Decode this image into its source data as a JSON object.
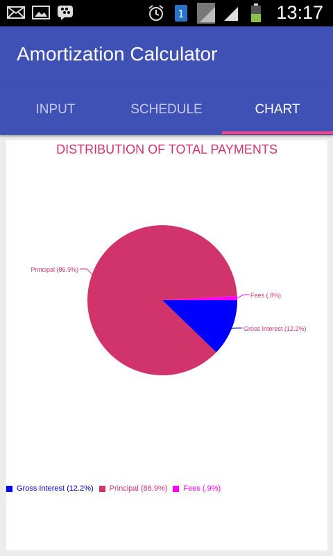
{
  "status_bar": {
    "time": "13:17",
    "left_icons": [
      "email-icon",
      "image-icon",
      "bbm-icon"
    ],
    "right_icons": [
      "alarm-icon",
      "sim-icon",
      "signal-icon",
      "battery-icon"
    ]
  },
  "app": {
    "title": "Amortization Calculator"
  },
  "tabs": [
    {
      "label": "INPUT",
      "active": false
    },
    {
      "label": "SCHEDULE",
      "active": false
    },
    {
      "label": "CHART",
      "active": true
    }
  ],
  "chart_data": {
    "type": "pie",
    "title": "DISTRIBUTION OF TOTAL PAYMENTS",
    "slices": [
      {
        "name": "Principal",
        "label": "Principal (86.9%)",
        "value": 86.9,
        "color": "#d1346a"
      },
      {
        "name": "Fees",
        "label": "Fees (.9%)",
        "value": 0.9,
        "color": "#ff00ff"
      },
      {
        "name": "Gross Interest",
        "label": "Gross Interest (12.2%)",
        "value": 12.2,
        "color": "#0000ff"
      }
    ],
    "legend": [
      {
        "label": "Gross Interest (12.2%)",
        "color": "#0000ff"
      },
      {
        "label": "Principal (86.9%)",
        "color": "#d1346a"
      },
      {
        "label": "Fees (.9%)",
        "color": "#ff00ff"
      }
    ],
    "legend_position": "bottom-left"
  }
}
